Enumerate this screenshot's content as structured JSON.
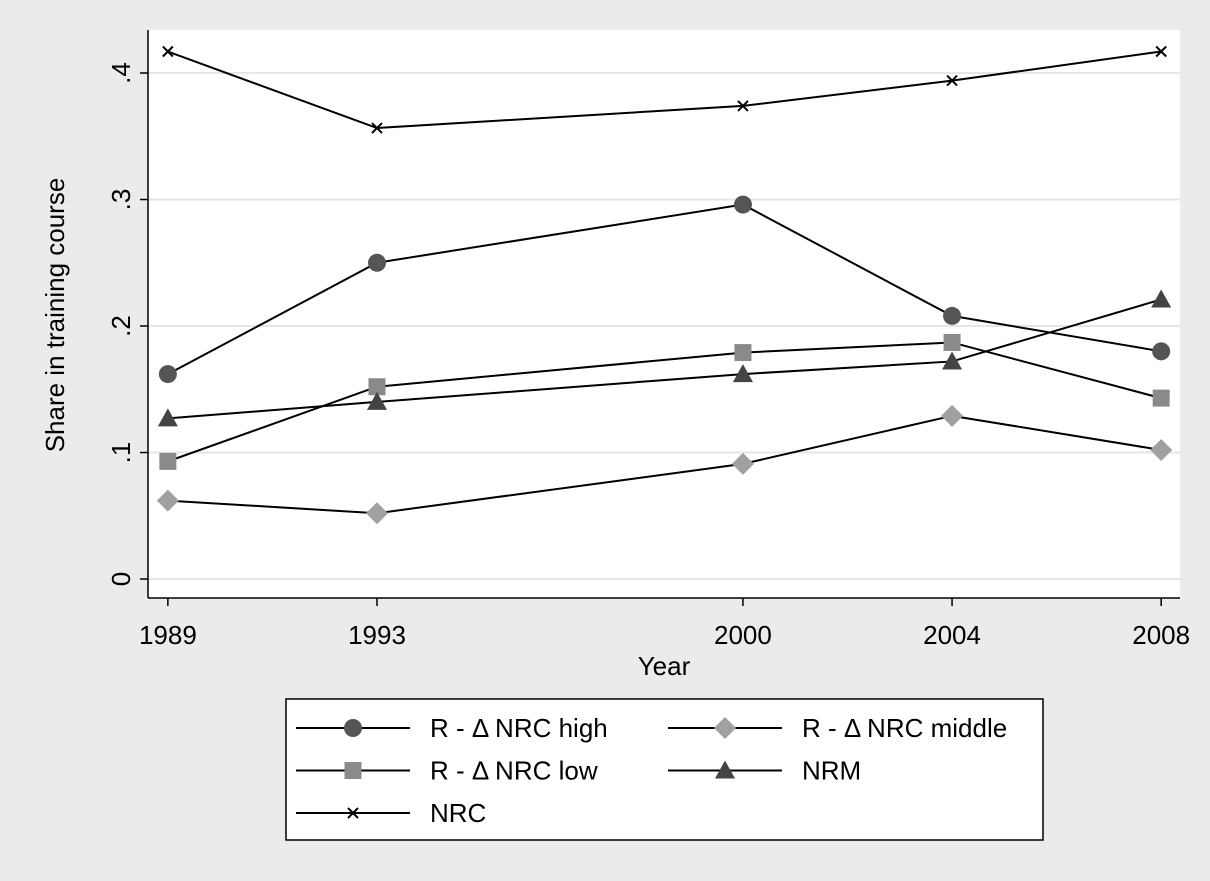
{
  "chart_data": {
    "type": "line",
    "x_label": "Year",
    "y_label": "Share in training course",
    "x": [
      1989,
      1993,
      2000,
      2004,
      2008
    ],
    "xlim": [
      1988.62,
      2008.36
    ],
    "xticks": [
      1989,
      1993,
      2000,
      2004,
      2008
    ],
    "ylim": [
      -0.015,
      0.434
    ],
    "yticks": [
      0,
      {
        "value": 0.1,
        "label": ".1"
      },
      {
        "value": 0.2,
        "label": ".2"
      },
      {
        "value": 0.3,
        "label": ".3"
      },
      {
        "value": 0.4,
        "label": ".4"
      }
    ],
    "grid": true,
    "series": [
      {
        "name": "R - Δ NRC high",
        "color": "#555555",
        "marker": "circle",
        "values": [
          0.162,
          0.25,
          0.296,
          0.208,
          0.18
        ]
      },
      {
        "name": "R - Δ NRC middle",
        "color": "#a0a0a0",
        "marker": "diamond",
        "values": [
          0.062,
          0.052,
          0.091,
          0.129,
          0.102
        ]
      },
      {
        "name": "R - Δ NRC low",
        "color": "#8a8a8a",
        "marker": "square",
        "values": [
          0.093,
          0.152,
          0.179,
          0.187,
          0.143
        ]
      },
      {
        "name": "NRM",
        "color": "#444444",
        "marker": "triangle",
        "values": [
          0.127,
          0.14,
          0.162,
          0.172,
          0.221
        ]
      },
      {
        "name": "NRC",
        "color": "#000000",
        "marker": "x",
        "values": [
          0.417,
          0.3565,
          0.374,
          0.394,
          0.417
        ]
      }
    ]
  }
}
